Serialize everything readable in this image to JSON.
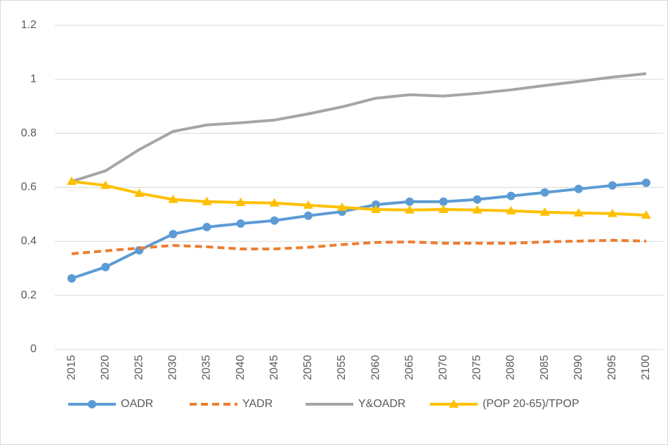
{
  "chart_data": {
    "type": "line",
    "categories": [
      "2015",
      "2020",
      "2025",
      "2030",
      "2035",
      "2040",
      "2045",
      "2050",
      "2055",
      "2060",
      "2065",
      "2070",
      "2075",
      "2080",
      "2085",
      "2090",
      "2095",
      "2100"
    ],
    "series": [
      {
        "name": "OADR",
        "color": "#5b9bd5",
        "marker": "circle",
        "dash": false,
        "values": [
          0.263,
          0.305,
          0.367,
          0.427,
          0.453,
          0.466,
          0.477,
          0.495,
          0.51,
          0.536,
          0.547,
          0.547,
          0.555,
          0.568,
          0.581,
          0.594,
          0.607,
          0.617
        ]
      },
      {
        "name": "YADR",
        "color": "#ed7d31",
        "marker": "none",
        "dash": true,
        "values": [
          0.354,
          0.365,
          0.375,
          0.385,
          0.38,
          0.372,
          0.372,
          0.378,
          0.388,
          0.396,
          0.398,
          0.393,
          0.393,
          0.393,
          0.398,
          0.401,
          0.404,
          0.401
        ]
      },
      {
        "name": "Y&OADR",
        "color": "#a5a5a5",
        "marker": "none",
        "dash": false,
        "values": [
          0.622,
          0.661,
          0.74,
          0.807,
          0.831,
          0.839,
          0.849,
          0.872,
          0.898,
          0.93,
          0.943,
          0.938,
          0.948,
          0.961,
          0.977,
          0.992,
          1.008,
          1.021
        ]
      },
      {
        "name": "(POP 20-65)/TPOP",
        "color": "#ffc000",
        "marker": "triangle",
        "dash": false,
        "values": [
          0.622,
          0.607,
          0.578,
          0.555,
          0.547,
          0.544,
          0.542,
          0.534,
          0.526,
          0.518,
          0.516,
          0.518,
          0.516,
          0.513,
          0.508,
          0.505,
          0.503,
          0.497
        ]
      }
    ],
    "ylim": [
      0,
      1.2
    ],
    "yticks": [
      0,
      0.2,
      0.4,
      0.6,
      0.8,
      1,
      1.2
    ],
    "grid": true,
    "legend": "bottom"
  }
}
